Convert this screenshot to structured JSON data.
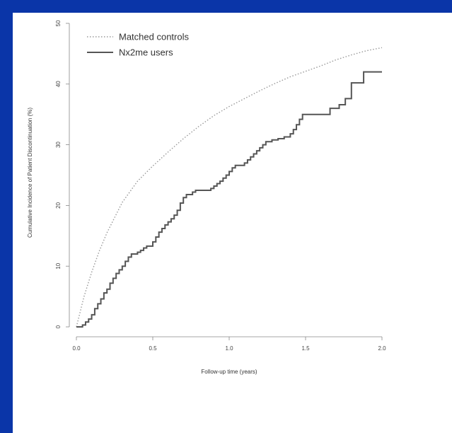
{
  "chart_data": {
    "type": "line",
    "xlabel": "Follow-up time (years)",
    "ylabel": "Cumulative Incidence of Patient Discontinuation (%)",
    "xlim": [
      0,
      2
    ],
    "ylim": [
      0,
      50
    ],
    "x_ticks": [
      "0.0",
      "0.5",
      "1.0",
      "1.5",
      "2.0"
    ],
    "y_ticks": [
      "0",
      "10",
      "20",
      "30",
      "40",
      "50"
    ],
    "legend_position": "top-left",
    "series": [
      {
        "name": "Matched controls",
        "style": "dotted",
        "color": "#999999",
        "x": [
          0,
          0.05,
          0.1,
          0.15,
          0.2,
          0.3,
          0.4,
          0.5,
          0.6,
          0.7,
          0.8,
          0.9,
          1.0,
          1.1,
          1.2,
          1.3,
          1.4,
          1.5,
          1.6,
          1.7,
          1.8,
          1.9,
          2.0
        ],
        "y": [
          0,
          5,
          9,
          12.5,
          15.5,
          20.5,
          24,
          26.5,
          28.8,
          31,
          33,
          34.8,
          36.3,
          37.6,
          38.9,
          40.1,
          41.2,
          42.1,
          43,
          44,
          44.8,
          45.5,
          46
        ]
      },
      {
        "name": "Nx2me users",
        "style": "step",
        "color": "#555555",
        "x": [
          0,
          0.02,
          0.04,
          0.06,
          0.08,
          0.1,
          0.12,
          0.14,
          0.16,
          0.18,
          0.2,
          0.22,
          0.24,
          0.26,
          0.28,
          0.3,
          0.32,
          0.34,
          0.36,
          0.4,
          0.42,
          0.44,
          0.46,
          0.5,
          0.52,
          0.54,
          0.56,
          0.58,
          0.6,
          0.62,
          0.64,
          0.66,
          0.68,
          0.7,
          0.72,
          0.76,
          0.78,
          0.82,
          0.84,
          0.88,
          0.9,
          0.92,
          0.94,
          0.96,
          0.98,
          1.0,
          1.02,
          1.04,
          1.06,
          1.1,
          1.12,
          1.14,
          1.16,
          1.18,
          1.2,
          1.22,
          1.24,
          1.28,
          1.32,
          1.36,
          1.4,
          1.42,
          1.44,
          1.46,
          1.48,
          1.56,
          1.62,
          1.66,
          1.7,
          1.72,
          1.76,
          1.8,
          1.84,
          1.88,
          1.92,
          2.0
        ],
        "y": [
          0,
          0,
          0.3,
          0.8,
          1.3,
          2.0,
          3.0,
          3.8,
          4.6,
          5.6,
          6.2,
          7.2,
          8.0,
          8.8,
          9.4,
          10.0,
          10.8,
          11.5,
          12.0,
          12.3,
          12.6,
          13.0,
          13.3,
          14.0,
          14.8,
          15.6,
          16.2,
          16.8,
          17.3,
          17.8,
          18.4,
          19.2,
          20.4,
          21.3,
          21.8,
          22.2,
          22.5,
          22.5,
          22.5,
          22.8,
          23.2,
          23.6,
          24.0,
          24.5,
          25.0,
          25.6,
          26.2,
          26.6,
          26.6,
          27.0,
          27.5,
          28.0,
          28.5,
          29.0,
          29.5,
          30.0,
          30.5,
          30.8,
          31.0,
          31.3,
          31.8,
          32.5,
          33.3,
          34.2,
          35.0,
          35.0,
          35.0,
          36.0,
          36.0,
          36.6,
          37.6,
          40.2,
          40.2,
          42.0,
          42.0,
          42.0
        ]
      }
    ]
  }
}
